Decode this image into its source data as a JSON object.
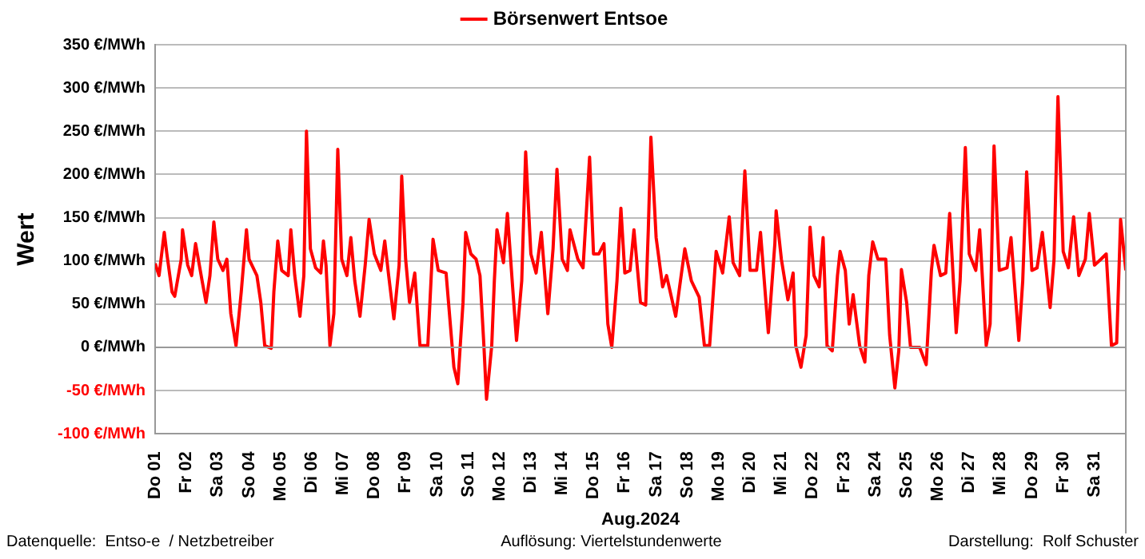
{
  "chart_data": {
    "type": "line",
    "xlabel": "Aug.2024",
    "ylabel": "Wert",
    "legend": "top",
    "grid": "y",
    "line_style": "solid",
    "marker": "none",
    "xlim": [
      "2024-08-01",
      "2024-09-01"
    ],
    "xticks": [
      {
        "value": "2024-08-01",
        "label": "Do 01"
      },
      {
        "value": "2024-08-02",
        "label": "Fr 02"
      },
      {
        "value": "2024-08-03",
        "label": "Sa 03"
      },
      {
        "value": "2024-08-04",
        "label": "So 04"
      },
      {
        "value": "2024-08-05",
        "label": "Mo 05"
      },
      {
        "value": "2024-08-06",
        "label": "Di 06"
      },
      {
        "value": "2024-08-07",
        "label": "Mi 07"
      },
      {
        "value": "2024-08-08",
        "label": "Do 08"
      },
      {
        "value": "2024-08-09",
        "label": "Fr 09"
      },
      {
        "value": "2024-08-10",
        "label": "Sa 10"
      },
      {
        "value": "2024-08-11",
        "label": "So 11"
      },
      {
        "value": "2024-08-12",
        "label": "Mo 12"
      },
      {
        "value": "2024-08-13",
        "label": "Di 13"
      },
      {
        "value": "2024-08-14",
        "label": "Mi 14"
      },
      {
        "value": "2024-08-15",
        "label": "Do 15"
      },
      {
        "value": "2024-08-16",
        "label": "Fr 16"
      },
      {
        "value": "2024-08-17",
        "label": "Sa 17"
      },
      {
        "value": "2024-08-18",
        "label": "So 18"
      },
      {
        "value": "2024-08-19",
        "label": "Mo 19"
      },
      {
        "value": "2024-08-20",
        "label": "Di 20"
      },
      {
        "value": "2024-08-21",
        "label": "Mi 21"
      },
      {
        "value": "2024-08-22",
        "label": "Do 22"
      },
      {
        "value": "2024-08-23",
        "label": "Fr 23"
      },
      {
        "value": "2024-08-24",
        "label": "Sa 24"
      },
      {
        "value": "2024-08-25",
        "label": "So 25"
      },
      {
        "value": "2024-08-26",
        "label": "Mo 26"
      },
      {
        "value": "2024-08-27",
        "label": "Di 27"
      },
      {
        "value": "2024-08-28",
        "label": "Mi 28"
      },
      {
        "value": "2024-08-29",
        "label": "Do 29"
      },
      {
        "value": "2024-08-30",
        "label": "Fr 30"
      },
      {
        "value": "2024-08-31",
        "label": "Sa 31"
      }
    ],
    "ylim": [
      -100,
      350
    ],
    "yticks": [
      {
        "value": -100,
        "label": "-100 €/MWh"
      },
      {
        "value": -50,
        "label": "-50 €/MWh"
      },
      {
        "value": 0,
        "label": "0 €/MWh"
      },
      {
        "value": 50,
        "label": "50 €/MWh"
      },
      {
        "value": 100,
        "label": "100 €/MWh"
      },
      {
        "value": 150,
        "label": "150 €/MWh"
      },
      {
        "value": 200,
        "label": "200 €/MWh"
      },
      {
        "value": 250,
        "label": "250 €/MWh"
      },
      {
        "value": 300,
        "label": "300 €/MWh"
      },
      {
        "value": 350,
        "label": "350 €/MWh"
      }
    ],
    "annotations": [
      "Datenquelle:  Entso-e  / Netzbetreiber",
      "Auflösung: Viertelstundenwerte",
      "Darstellung:  Rolf Schuster"
    ],
    "series": [
      {
        "name": "Börsenwert Entsoe",
        "color": "#ff0000",
        "x": [
          "2024-08-01T00:00",
          "2024-08-01T03:00",
          "2024-08-01T07:00",
          "2024-08-01T09:00",
          "2024-08-01T13:00",
          "2024-08-01T15:00",
          "2024-08-01T20:00",
          "2024-08-01T21:00",
          "2024-08-02T01:00",
          "2024-08-02T04:00",
          "2024-08-02T07:00",
          "2024-08-02T12:00",
          "2024-08-02T15:00",
          "2024-08-02T18:00",
          "2024-08-02T21:00",
          "2024-08-03T00:00",
          "2024-08-03T04:00",
          "2024-08-03T07:00",
          "2024-08-03T10:00",
          "2024-08-03T14:00",
          "2024-08-03T18:00",
          "2024-08-03T22:00",
          "2024-08-04T00:00",
          "2024-08-04T06:00",
          "2024-08-04T09:00",
          "2024-08-04T12:00",
          "2024-08-04T17:00",
          "2024-08-04T19:00",
          "2024-08-04T22:00",
          "2024-08-05T01:00",
          "2024-08-05T06:00",
          "2024-08-05T08:00",
          "2024-08-05T11:00",
          "2024-08-05T15:00",
          "2024-08-05T18:00",
          "2024-08-05T20:00",
          "2024-08-05T23:00",
          "2024-08-06T03:00",
          "2024-08-06T07:00",
          "2024-08-06T09:00",
          "2024-08-06T11:00",
          "2024-08-06T14:00",
          "2024-08-06T17:00",
          "2024-08-06T20:00",
          "2024-08-06T23:00",
          "2024-08-07T03:00",
          "2024-08-07T06:00",
          "2024-08-07T09:00",
          "2024-08-07T13:00",
          "2024-08-07T17:00",
          "2024-08-07T20:00",
          "2024-08-08T00:00",
          "2024-08-08T05:00",
          "2024-08-08T08:00",
          "2024-08-08T11:00",
          "2024-08-08T15:00",
          "2024-08-08T19:00",
          "2024-08-08T21:00",
          "2024-08-09T00:00",
          "2024-08-09T03:00",
          "2024-08-09T07:00",
          "2024-08-09T11:00",
          "2024-08-09T17:00",
          "2024-08-09T21:00",
          "2024-08-10T01:00",
          "2024-08-10T07:00",
          "2024-08-10T13:00",
          "2024-08-10T16:00",
          "2024-08-10T20:00",
          "2024-08-10T22:00",
          "2024-08-11T02:00",
          "2024-08-11T06:00",
          "2024-08-11T09:00",
          "2024-08-11T12:00",
          "2024-08-11T14:00",
          "2024-08-11T18:00",
          "2024-08-11T20:00",
          "2024-08-11T22:00",
          "2024-08-12T03:00",
          "2024-08-12T06:00",
          "2024-08-12T10:00",
          "2024-08-12T13:00",
          "2024-08-12T17:00",
          "2024-08-12T20:00",
          "2024-08-13T00:00",
          "2024-08-13T04:00",
          "2024-08-13T08:00",
          "2024-08-13T13:00",
          "2024-08-13T17:00",
          "2024-08-13T20:00",
          "2024-08-14T00:00",
          "2024-08-14T04:00",
          "2024-08-14T06:00",
          "2024-08-14T12:00",
          "2024-08-14T16:00",
          "2024-08-14T21:00",
          "2024-08-15T00:00",
          "2024-08-15T04:00",
          "2024-08-15T08:00",
          "2024-08-15T11:00",
          "2024-08-15T14:00",
          "2024-08-15T18:00",
          "2024-08-15T21:00",
          "2024-08-16T00:00",
          "2024-08-16T04:00",
          "2024-08-16T07:00",
          "2024-08-16T12:00",
          "2024-08-16T16:00",
          "2024-08-16T18:00",
          "2024-08-16T20:00",
          "2024-08-17T00:00",
          "2024-08-17T05:00",
          "2024-08-17T08:00",
          "2024-08-17T15:00",
          "2024-08-17T18:00",
          "2024-08-17T22:00",
          "2024-08-18T03:00",
          "2024-08-18T09:00",
          "2024-08-18T13:00",
          "2024-08-18T17:00",
          "2024-08-18T22:00",
          "2024-08-19T03:00",
          "2024-08-19T08:00",
          "2024-08-19T11:00",
          "2024-08-19T16:00",
          "2024-08-19T20:00",
          "2024-08-20T00:00",
          "2024-08-20T05:00",
          "2024-08-20T08:00",
          "2024-08-20T14:00",
          "2024-08-20T19:00",
          "2024-08-20T20:00",
          "2024-08-21T00:00",
          "2024-08-21T05:00",
          "2024-08-21T09:00",
          "2024-08-21T11:00",
          "2024-08-21T15:00",
          "2024-08-21T19:00",
          "2024-08-21T22:00",
          "2024-08-22T01:00",
          "2024-08-22T05:00",
          "2024-08-22T08:00",
          "2024-08-22T11:00",
          "2024-08-22T15:00",
          "2024-08-22T19:00",
          "2024-08-22T21:00",
          "2024-08-23T01:00",
          "2024-08-23T04:00",
          "2024-08-23T07:00",
          "2024-08-23T12:00",
          "2024-08-23T16:00",
          "2024-08-23T19:00",
          "2024-08-23T22:00",
          "2024-08-24T02:00",
          "2024-08-24T08:00",
          "2024-08-24T11:00",
          "2024-08-24T15:00",
          "2024-08-24T18:00",
          "2024-08-24T20:00",
          "2024-08-25T00:00",
          "2024-08-25T03:00",
          "2024-08-25T10:00",
          "2024-08-25T15:00",
          "2024-08-25T19:00",
          "2024-08-25T21:00",
          "2024-08-26T02:00",
          "2024-08-26T06:00",
          "2024-08-26T09:00",
          "2024-08-26T14:00",
          "2024-08-26T17:00",
          "2024-08-26T21:00",
          "2024-08-27T00:00",
          "2024-08-27T05:00",
          "2024-08-27T08:00",
          "2024-08-27T13:00",
          "2024-08-27T16:00",
          "2024-08-27T19:00",
          "2024-08-27T23:00",
          "2024-08-28T05:00",
          "2024-08-28T08:00",
          "2024-08-28T14:00",
          "2024-08-28T17:00",
          "2024-08-28T20:00",
          "2024-08-29T00:00",
          "2024-08-29T04:00",
          "2024-08-29T08:00",
          "2024-08-29T14:00",
          "2024-08-29T17:00",
          "2024-08-29T20:00",
          "2024-08-30T00:00",
          "2024-08-30T04:00",
          "2024-08-30T08:00",
          "2024-08-30T12:00",
          "2024-08-30T17:00",
          "2024-08-30T20:00",
          "2024-08-31T00:00",
          "2024-08-31T05:00",
          "2024-08-31T09:00",
          "2024-08-31T13:00",
          "2024-08-31T17:00",
          "2024-08-31T20:00",
          "2024-09-01T00:00"
        ],
        "values": [
          97,
          83,
          133,
          108,
          64,
          59,
          102,
          136,
          95,
          83,
          120,
          77,
          52,
          83,
          145,
          102,
          89,
          102,
          39,
          2,
          64,
          136,
          102,
          83,
          52,
          2,
          -1,
          64,
          123,
          89,
          83,
          136,
          83,
          36,
          83,
          250,
          114,
          92,
          86,
          123,
          95,
          2,
          39,
          229,
          102,
          83,
          127,
          77,
          36,
          95,
          148,
          108,
          89,
          123,
          83,
          33,
          95,
          198,
          102,
          52,
          86,
          2,
          2,
          125,
          89,
          86,
          -23,
          -42,
          52,
          133,
          108,
          102,
          83,
          2,
          -60,
          2,
          77,
          136,
          98,
          155,
          70,
          8,
          77,
          226,
          108,
          86,
          133,
          39,
          114,
          206,
          102,
          89,
          136,
          102,
          92,
          220,
          108,
          108,
          120,
          27,
          0,
          77,
          161,
          86,
          89,
          136,
          52,
          49,
          136,
          243,
          127,
          70,
          83,
          36,
          70,
          114,
          77,
          58,
          2,
          2,
          111,
          86,
          151,
          98,
          83,
          204,
          89,
          89,
          133,
          17,
          120,
          158,
          102,
          55,
          86,
          2,
          -23,
          14,
          139,
          83,
          70,
          127,
          2,
          -4,
          83,
          111,
          89,
          27,
          61,
          2,
          -17,
          83,
          122,
          102,
          102,
          14,
          -47,
          -4,
          90,
          52,
          0,
          0,
          -20,
          89,
          118,
          83,
          86,
          155,
          17,
          77,
          231,
          108,
          89,
          136,
          2,
          27,
          233,
          89,
          92,
          127,
          8,
          77,
          203,
          89,
          92,
          133,
          46,
          102,
          290,
          111,
          92,
          151,
          83,
          102,
          155,
          95,
          102,
          108,
          2,
          5,
          148,
          89
        ]
      }
    ]
  }
}
